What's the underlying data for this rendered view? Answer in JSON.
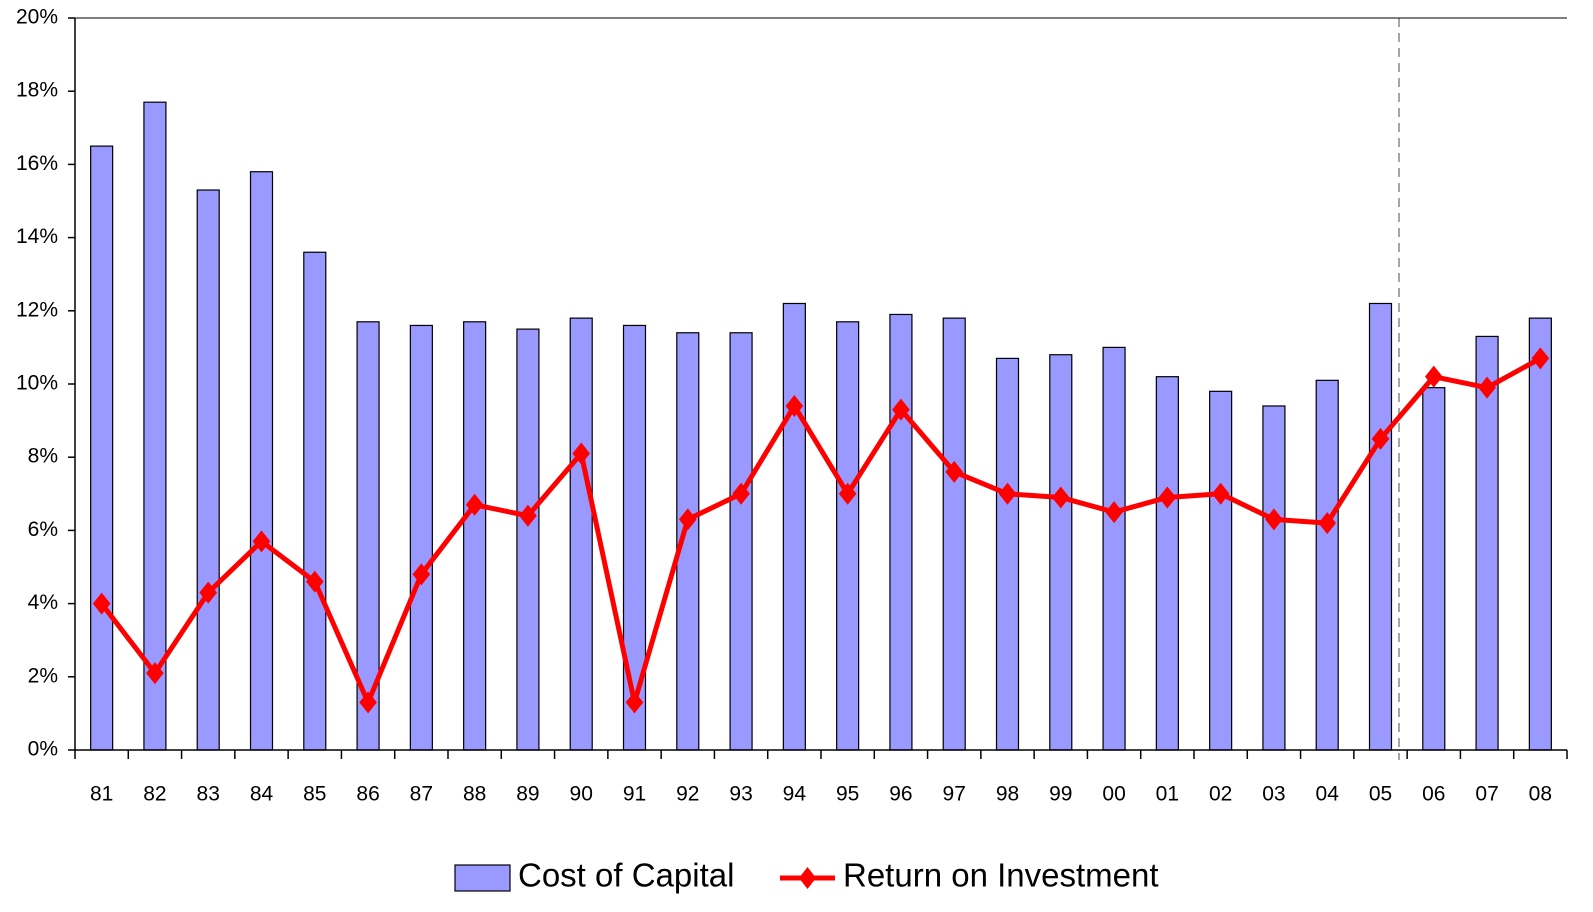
{
  "chart_data": {
    "type": "bar",
    "categories": [
      "81",
      "82",
      "83",
      "84",
      "85",
      "86",
      "87",
      "88",
      "89",
      "90",
      "91",
      "92",
      "93",
      "94",
      "95",
      "96",
      "97",
      "98",
      "99",
      "00",
      "01",
      "02",
      "03",
      "04",
      "05",
      "06",
      "07",
      "08"
    ],
    "series": [
      {
        "name": "Cost of Capital",
        "type": "bar",
        "color": "#9999ff",
        "values": [
          16.5,
          17.7,
          15.3,
          15.8,
          13.6,
          11.7,
          11.6,
          11.7,
          11.5,
          11.8,
          11.6,
          11.4,
          11.4,
          12.2,
          11.7,
          11.9,
          11.8,
          10.7,
          10.8,
          11.0,
          10.2,
          9.8,
          9.4,
          10.1,
          12.2,
          9.9,
          11.3,
          11.8
        ]
      },
      {
        "name": "Return on Investment",
        "type": "line",
        "color": "#ff0000",
        "values": [
          4.0,
          2.1,
          4.3,
          5.7,
          4.6,
          1.3,
          4.8,
          6.7,
          6.4,
          8.1,
          1.3,
          6.3,
          7.0,
          9.4,
          7.0,
          9.3,
          7.6,
          7.0,
          6.9,
          6.5,
          6.9,
          7.0,
          6.3,
          6.2,
          8.5,
          10.2,
          9.9,
          10.7
        ]
      }
    ],
    "ylim": [
      0,
      20
    ],
    "yticks": [
      {
        "value": 0,
        "label": "0%"
      },
      {
        "value": 2,
        "label": "2%"
      },
      {
        "value": 4,
        "label": "4%"
      },
      {
        "value": 6,
        "label": "6%"
      },
      {
        "value": 8,
        "label": "8%"
      },
      {
        "value": 10,
        "label": "10%"
      },
      {
        "value": 12,
        "label": "12%"
      },
      {
        "value": 14,
        "label": "14%"
      },
      {
        "value": 16,
        "label": "16%"
      },
      {
        "value": 18,
        "label": "18%"
      },
      {
        "value": 20,
        "label": "20%"
      }
    ],
    "grid": false
  }
}
